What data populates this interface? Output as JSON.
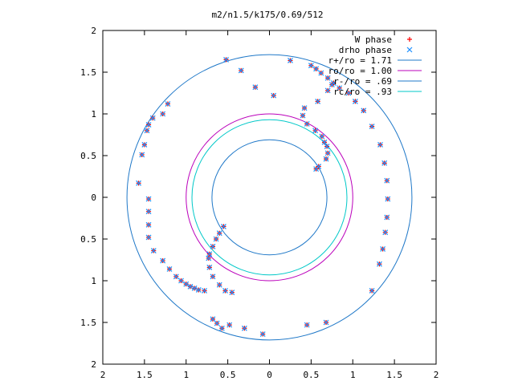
{
  "chart_data": {
    "type": "scatter",
    "title": "m2/n1.5/k175/0.69/512",
    "xlabel": "",
    "ylabel": "",
    "xlim": [
      -2,
      2
    ],
    "ylim": [
      -2,
      2
    ],
    "x_tick_labels": [
      "2",
      "1.5",
      "1",
      "0.5",
      "0",
      "0.5",
      "1",
      "1.5",
      "2"
    ],
    "y_tick_labels": [
      "2",
      "1.5",
      "1",
      "0.5",
      "0",
      "0.5",
      "1",
      "1.5",
      "2"
    ],
    "grid": false,
    "legend_position": "top-right",
    "legend": [
      {
        "label": "W phase",
        "kind": "point",
        "marker": "+",
        "color": "#ff0000"
      },
      {
        "label": "drho phase",
        "kind": "point",
        "marker": "x",
        "color": "#1e90ff"
      },
      {
        "label": "r+/ro = 1.71",
        "kind": "circle",
        "radius": 1.71,
        "color": "#1f78c8"
      },
      {
        "label": "ro/ro = 1.00",
        "kind": "circle",
        "radius": 1.0,
        "color": "#bb00bb"
      },
      {
        "label": "r-/ro = .69",
        "kind": "circle",
        "radius": 0.69,
        "color": "#1f78c8"
      },
      {
        "label": "rc/ro = .93",
        "kind": "circle",
        "radius": 0.93,
        "color": "#00c8c8"
      }
    ],
    "series": [
      {
        "name": "W phase",
        "marker": "+",
        "color": "#ff0000",
        "points": [
          [
            -0.52,
            1.65
          ],
          [
            -0.34,
            1.52
          ],
          [
            -0.17,
            1.32
          ],
          [
            0.05,
            1.22
          ],
          [
            0.25,
            1.64
          ],
          [
            0.5,
            1.58
          ],
          [
            0.56,
            1.54
          ],
          [
            0.62,
            1.49
          ],
          [
            0.7,
            1.43
          ],
          [
            0.77,
            1.37
          ],
          [
            0.84,
            1.31
          ],
          [
            0.95,
            1.25
          ],
          [
            1.03,
            1.15
          ],
          [
            1.13,
            1.04
          ],
          [
            1.23,
            0.85
          ],
          [
            1.33,
            0.63
          ],
          [
            1.38,
            0.41
          ],
          [
            1.41,
            0.2
          ],
          [
            1.42,
            -0.02
          ],
          [
            1.41,
            -0.24
          ],
          [
            1.39,
            -0.42
          ],
          [
            1.36,
            -0.62
          ],
          [
            1.32,
            -0.8
          ],
          [
            1.23,
            -1.12
          ],
          [
            0.68,
            -1.5
          ],
          [
            0.45,
            -1.53
          ],
          [
            -1.57,
            0.17
          ],
          [
            -1.53,
            0.51
          ],
          [
            -1.5,
            0.63
          ],
          [
            -1.47,
            0.8
          ],
          [
            -1.45,
            0.87
          ],
          [
            -1.4,
            0.95
          ],
          [
            -1.28,
            1.0
          ],
          [
            -1.22,
            1.12
          ],
          [
            -1.45,
            -0.02
          ],
          [
            -1.45,
            -0.17
          ],
          [
            -1.45,
            -0.33
          ],
          [
            -1.45,
            -0.48
          ],
          [
            -1.39,
            -0.64
          ],
          [
            -1.28,
            -0.76
          ],
          [
            -1.2,
            -0.86
          ],
          [
            -1.12,
            -0.95
          ],
          [
            -1.06,
            -1.0
          ],
          [
            -1.0,
            -1.04
          ],
          [
            -0.95,
            -1.07
          ],
          [
            -0.9,
            -1.09
          ],
          [
            -0.85,
            -1.11
          ],
          [
            -0.78,
            -1.12
          ],
          [
            -0.68,
            -1.46
          ],
          [
            -0.63,
            -1.51
          ],
          [
            -0.57,
            -1.57
          ],
          [
            -0.48,
            -1.53
          ],
          [
            -0.3,
            -1.57
          ],
          [
            -0.08,
            -1.64
          ],
          [
            0.75,
            1.35
          ],
          [
            0.7,
            1.28
          ],
          [
            0.58,
            1.15
          ],
          [
            0.42,
            1.07
          ],
          [
            0.4,
            0.98
          ],
          [
            0.45,
            0.88
          ],
          [
            0.55,
            0.8
          ],
          [
            0.63,
            0.73
          ],
          [
            0.66,
            0.66
          ],
          [
            0.69,
            0.61
          ],
          [
            0.7,
            0.53
          ],
          [
            0.68,
            0.46
          ],
          [
            0.59,
            0.37
          ],
          [
            0.56,
            0.34
          ],
          [
            -0.55,
            -0.35
          ],
          [
            -0.6,
            -0.43
          ],
          [
            -0.64,
            -0.5
          ],
          [
            -0.68,
            -0.59
          ],
          [
            -0.72,
            -0.68
          ],
          [
            -0.73,
            -0.73
          ],
          [
            -0.72,
            -0.84
          ],
          [
            -0.68,
            -0.95
          ],
          [
            -0.6,
            -1.05
          ],
          [
            -0.53,
            -1.12
          ],
          [
            -0.45,
            -1.14
          ]
        ]
      },
      {
        "name": "drho phase",
        "marker": "x",
        "color": "#1e90ff",
        "points": [
          [
            -0.52,
            1.65
          ],
          [
            -0.34,
            1.52
          ],
          [
            -0.17,
            1.32
          ],
          [
            0.05,
            1.22
          ],
          [
            0.25,
            1.64
          ],
          [
            0.5,
            1.58
          ],
          [
            0.56,
            1.54
          ],
          [
            0.62,
            1.49
          ],
          [
            0.7,
            1.43
          ],
          [
            0.77,
            1.37
          ],
          [
            0.84,
            1.31
          ],
          [
            0.95,
            1.25
          ],
          [
            1.03,
            1.15
          ],
          [
            1.13,
            1.04
          ],
          [
            1.23,
            0.85
          ],
          [
            1.33,
            0.63
          ],
          [
            1.38,
            0.41
          ],
          [
            1.41,
            0.2
          ],
          [
            1.42,
            -0.02
          ],
          [
            1.41,
            -0.24
          ],
          [
            1.39,
            -0.42
          ],
          [
            1.36,
            -0.62
          ],
          [
            1.32,
            -0.8
          ],
          [
            1.23,
            -1.12
          ],
          [
            0.68,
            -1.5
          ],
          [
            0.45,
            -1.53
          ],
          [
            -1.57,
            0.17
          ],
          [
            -1.53,
            0.51
          ],
          [
            -1.5,
            0.63
          ],
          [
            -1.47,
            0.8
          ],
          [
            -1.45,
            0.87
          ],
          [
            -1.4,
            0.95
          ],
          [
            -1.28,
            1.0
          ],
          [
            -1.22,
            1.12
          ],
          [
            -1.45,
            -0.02
          ],
          [
            -1.45,
            -0.17
          ],
          [
            -1.45,
            -0.33
          ],
          [
            -1.45,
            -0.48
          ],
          [
            -1.39,
            -0.64
          ],
          [
            -1.28,
            -0.76
          ],
          [
            -1.2,
            -0.86
          ],
          [
            -1.12,
            -0.95
          ],
          [
            -1.06,
            -1.0
          ],
          [
            -1.0,
            -1.04
          ],
          [
            -0.95,
            -1.07
          ],
          [
            -0.9,
            -1.09
          ],
          [
            -0.85,
            -1.11
          ],
          [
            -0.78,
            -1.12
          ],
          [
            -0.68,
            -1.46
          ],
          [
            -0.63,
            -1.51
          ],
          [
            -0.57,
            -1.57
          ],
          [
            -0.48,
            -1.53
          ],
          [
            -0.3,
            -1.57
          ],
          [
            -0.08,
            -1.64
          ],
          [
            0.75,
            1.35
          ],
          [
            0.7,
            1.28
          ],
          [
            0.58,
            1.15
          ],
          [
            0.42,
            1.07
          ],
          [
            0.4,
            0.98
          ],
          [
            0.45,
            0.88
          ],
          [
            0.55,
            0.8
          ],
          [
            0.63,
            0.73
          ],
          [
            0.66,
            0.66
          ],
          [
            0.69,
            0.61
          ],
          [
            0.7,
            0.53
          ],
          [
            0.68,
            0.46
          ],
          [
            0.59,
            0.37
          ],
          [
            0.56,
            0.34
          ],
          [
            -0.55,
            -0.35
          ],
          [
            -0.6,
            -0.43
          ],
          [
            -0.64,
            -0.5
          ],
          [
            -0.68,
            -0.59
          ],
          [
            -0.72,
            -0.68
          ],
          [
            -0.73,
            -0.73
          ],
          [
            -0.72,
            -0.84
          ],
          [
            -0.68,
            -0.95
          ],
          [
            -0.6,
            -1.05
          ],
          [
            -0.53,
            -1.12
          ],
          [
            -0.45,
            -1.14
          ]
        ]
      }
    ]
  }
}
